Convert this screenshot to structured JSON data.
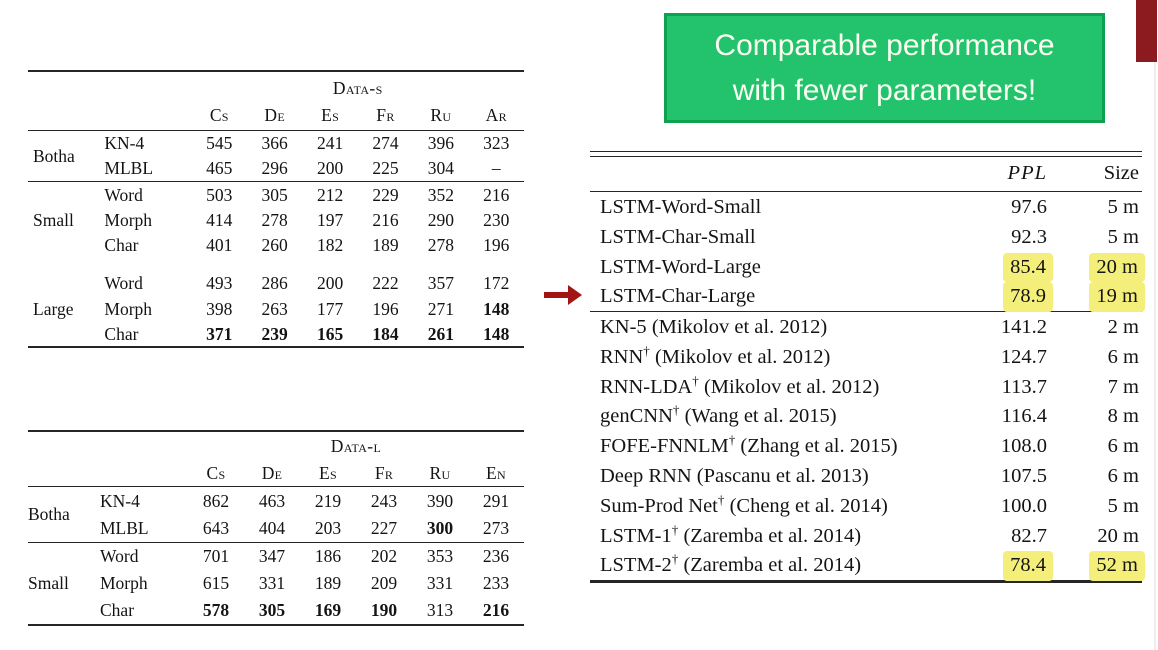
{
  "callout": {
    "line1": "Comparable performance",
    "line2": "with fewer parameters!"
  },
  "colors": {
    "callout_bg": "#22c36c",
    "callout_border": "#0fa24e",
    "callout_text": "#fbfff2",
    "accent_bar": "#8c1b20",
    "arrow": "#a31414",
    "highlight": "#f4ef7b"
  },
  "morphology_tables": [
    {
      "caption": "Data-s",
      "columns": [
        "Cs",
        "De",
        "Es",
        "Fr",
        "Ru",
        "Ar"
      ],
      "groups": [
        {
          "label": "Botha",
          "rule_after": true,
          "gap_before": false,
          "rows": [
            {
              "label": "KN-4",
              "values": [
                "545",
                "366",
                "241",
                "274",
                "396",
                "323"
              ],
              "bold": []
            },
            {
              "label": "MLBL",
              "values": [
                "465",
                "296",
                "200",
                "225",
                "304",
                "–"
              ],
              "bold": []
            }
          ]
        },
        {
          "label": "Small",
          "rule_after": false,
          "gap_before": false,
          "rows": [
            {
              "label": "Word",
              "values": [
                "503",
                "305",
                "212",
                "229",
                "352",
                "216"
              ],
              "bold": []
            },
            {
              "label": "Morph",
              "values": [
                "414",
                "278",
                "197",
                "216",
                "290",
                "230"
              ],
              "bold": []
            },
            {
              "label": "Char",
              "values": [
                "401",
                "260",
                "182",
                "189",
                "278",
                "196"
              ],
              "bold": []
            }
          ]
        },
        {
          "label": "Large",
          "rule_after": false,
          "gap_before": true,
          "rows": [
            {
              "label": "Word",
              "values": [
                "493",
                "286",
                "200",
                "222",
                "357",
                "172"
              ],
              "bold": []
            },
            {
              "label": "Morph",
              "values": [
                "398",
                "263",
                "177",
                "196",
                "271",
                "148"
              ],
              "bold": [
                5
              ]
            },
            {
              "label": "Char",
              "values": [
                "371",
                "239",
                "165",
                "184",
                "261",
                "148"
              ],
              "bold": [
                0,
                1,
                2,
                3,
                4,
                5
              ]
            }
          ]
        }
      ]
    },
    {
      "caption": "Data-l",
      "columns": [
        "Cs",
        "De",
        "Es",
        "Fr",
        "Ru",
        "En"
      ],
      "groups": [
        {
          "label": "Botha",
          "rule_after": true,
          "gap_before": false,
          "rows": [
            {
              "label": "KN-4",
              "values": [
                "862",
                "463",
                "219",
                "243",
                "390",
                "291"
              ],
              "bold": []
            },
            {
              "label": "MLBL",
              "values": [
                "643",
                "404",
                "203",
                "227",
                "300",
                "273"
              ],
              "bold": [
                4
              ]
            }
          ]
        },
        {
          "label": "Small",
          "rule_after": false,
          "gap_before": false,
          "rows": [
            {
              "label": "Word",
              "values": [
                "701",
                "347",
                "186",
                "202",
                "353",
                "236"
              ],
              "bold": []
            },
            {
              "label": "Morph",
              "values": [
                "615",
                "331",
                "189",
                "209",
                "331",
                "233"
              ],
              "bold": []
            },
            {
              "label": "Char",
              "values": [
                "578",
                "305",
                "169",
                "190",
                "313",
                "216"
              ],
              "bold": [
                0,
                1,
                2,
                3,
                5
              ]
            }
          ]
        }
      ]
    }
  ],
  "results_table": {
    "ppl_header": "PPL",
    "size_header": "Size",
    "groups": [
      {
        "rule_after": true,
        "rows": [
          {
            "name": "LSTM-Word-Small",
            "dagger": false,
            "cite": "",
            "ppl": "97.6",
            "size": "5 m",
            "highlight": false
          },
          {
            "name": "LSTM-Char-Small",
            "dagger": false,
            "cite": "",
            "ppl": "92.3",
            "size": "5 m",
            "highlight": false
          },
          {
            "name": "LSTM-Word-Large",
            "dagger": false,
            "cite": "",
            "ppl": "85.4",
            "size": "20 m",
            "highlight": true
          },
          {
            "name": "LSTM-Char-Large",
            "dagger": false,
            "cite": "",
            "ppl": "78.9",
            "size": "19 m",
            "highlight": true,
            "arrow": true
          }
        ]
      },
      {
        "rule_after": false,
        "rows": [
          {
            "name": "KN-5",
            "dagger": false,
            "cite": " (Mikolov et al. 2012)",
            "ppl": "141.2",
            "size": "2 m",
            "highlight": false
          },
          {
            "name": "RNN",
            "dagger": true,
            "cite": " (Mikolov et al. 2012)",
            "ppl": "124.7",
            "size": "6 m",
            "highlight": false
          },
          {
            "name": "RNN-LDA",
            "dagger": true,
            "cite": " (Mikolov et al. 2012)",
            "ppl": "113.7",
            "size": "7 m",
            "highlight": false
          },
          {
            "name": "genCNN",
            "dagger": true,
            "cite": " (Wang et al. 2015)",
            "ppl": "116.4",
            "size": "8 m",
            "highlight": false
          },
          {
            "name": "FOFE-FNNLM",
            "dagger": true,
            "cite": " (Zhang et al. 2015)",
            "ppl": "108.0",
            "size": "6 m",
            "highlight": false
          },
          {
            "name": "Deep RNN",
            "dagger": false,
            "cite": " (Pascanu et al. 2013)",
            "ppl": "107.5",
            "size": "6 m",
            "highlight": false
          },
          {
            "name": "Sum-Prod Net",
            "dagger": true,
            "cite": " (Cheng et al. 2014)",
            "ppl": "100.0",
            "size": "5 m",
            "highlight": false
          },
          {
            "name": "LSTM-1",
            "dagger": true,
            "cite": " (Zaremba et al. 2014)",
            "ppl": "82.7",
            "size": "20 m",
            "highlight": false
          },
          {
            "name": "LSTM-2",
            "dagger": true,
            "cite": " (Zaremba et al. 2014)",
            "ppl": "78.4",
            "size": "52 m",
            "highlight": true
          }
        ]
      }
    ]
  }
}
